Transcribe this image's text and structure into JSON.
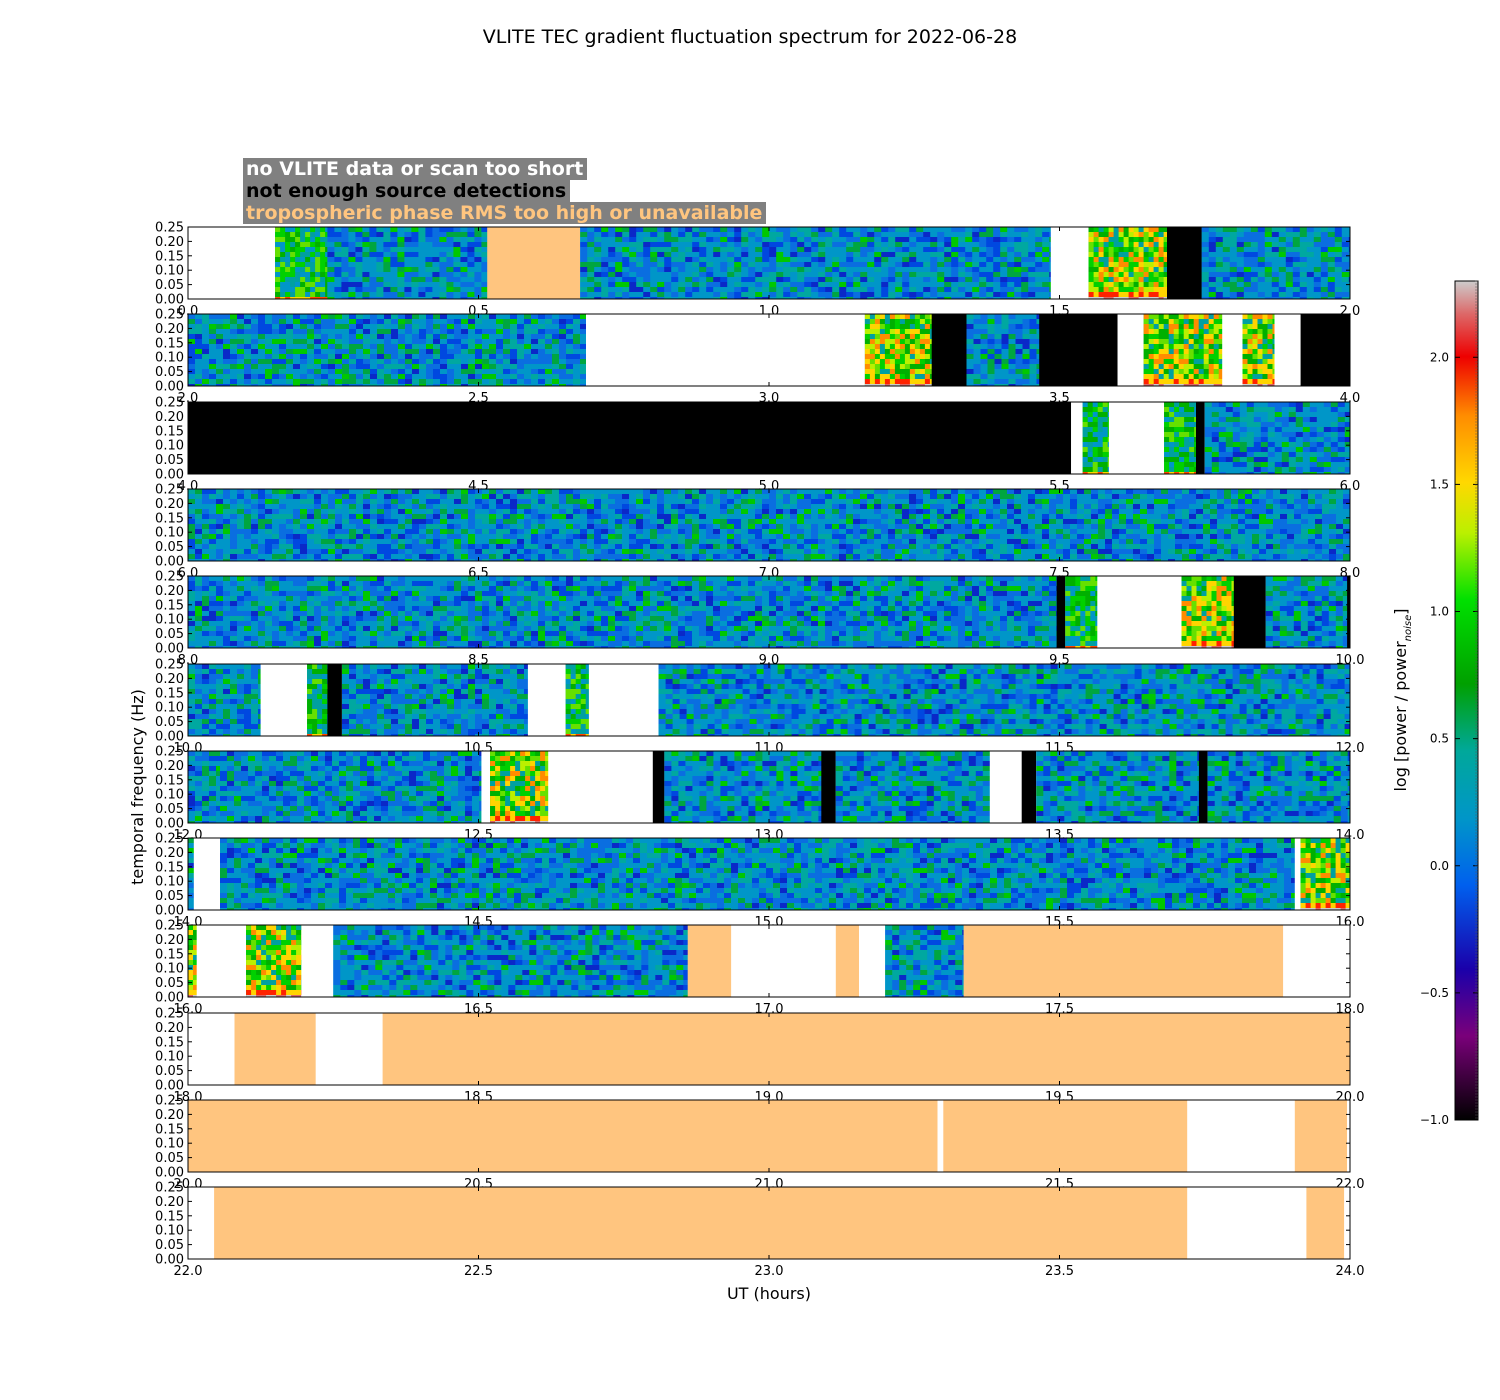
{
  "colors": {
    "tropo": "#ffc57f",
    "nodata": "#ffffff",
    "nodetect": "#000000",
    "legend_bg": "#808080"
  },
  "legend": [
    {
      "label": "no VLITE data or scan too short",
      "color": "#ffffff"
    },
    {
      "label": "not enough source detections",
      "color": "#000000"
    },
    {
      "label": "tropospheric phase RMS too high or unavailable",
      "color": "#ffc57f"
    }
  ],
  "chart_data": {
    "type": "heatmap",
    "title": "VLITE TEC gradient fluctuation spectrum for 2022-06-28",
    "xlabel": "UT (hours)",
    "ylabel": "temporal frequency (Hz)",
    "ylim": [
      0,
      0.25
    ],
    "yticks": [
      "0.00",
      "0.05",
      "0.10",
      "0.15",
      "0.20",
      "0.25"
    ],
    "colorbar": {
      "label": "log [power / power",
      "label_sub": "noise",
      "label_end": "]",
      "range": [
        -1.0,
        2.3
      ],
      "ticks": [
        "−1.0",
        "−0.5",
        "0.0",
        "0.5",
        "1.0",
        "1.5",
        "2.0"
      ]
    },
    "panels": [
      {
        "range": [
          0,
          2
        ],
        "xticks": [
          "0.0",
          "0.5",
          "1.0",
          "1.5",
          "2.0"
        ],
        "segments": [
          {
            "s": 0.0,
            "e": 0.15,
            "k": "nodata"
          },
          {
            "s": 0.15,
            "e": 0.24,
            "k": "green"
          },
          {
            "s": 0.24,
            "e": 0.515,
            "k": "noise"
          },
          {
            "s": 0.515,
            "e": 0.675,
            "k": "tropo"
          },
          {
            "s": 0.675,
            "e": 1.485,
            "k": "noise"
          },
          {
            "s": 1.485,
            "e": 1.55,
            "k": "nodata"
          },
          {
            "s": 1.55,
            "e": 1.685,
            "k": "hot"
          },
          {
            "s": 1.685,
            "e": 1.745,
            "k": "black"
          },
          {
            "s": 1.745,
            "e": 2.0,
            "k": "noise"
          }
        ]
      },
      {
        "range": [
          2,
          4
        ],
        "xticks": [
          "2.0",
          "2.5",
          "3.0",
          "3.5",
          "4.0"
        ],
        "segments": [
          {
            "s": 2.0,
            "e": 2.685,
            "k": "noise"
          },
          {
            "s": 2.685,
            "e": 3.165,
            "k": "nodata"
          },
          {
            "s": 3.165,
            "e": 3.28,
            "k": "hot"
          },
          {
            "s": 3.28,
            "e": 3.34,
            "k": "black"
          },
          {
            "s": 3.34,
            "e": 3.465,
            "k": "noise"
          },
          {
            "s": 3.465,
            "e": 3.6,
            "k": "black"
          },
          {
            "s": 3.6,
            "e": 3.645,
            "k": "nodata"
          },
          {
            "s": 3.645,
            "e": 3.78,
            "k": "hot"
          },
          {
            "s": 3.78,
            "e": 3.815,
            "k": "nodata"
          },
          {
            "s": 3.815,
            "e": 3.87,
            "k": "hot"
          },
          {
            "s": 3.87,
            "e": 3.915,
            "k": "nodata"
          },
          {
            "s": 3.915,
            "e": 4.0,
            "k": "black"
          }
        ]
      },
      {
        "range": [
          4,
          6
        ],
        "xticks": [
          "4.0",
          "4.5",
          "5.0",
          "5.5",
          "6.0"
        ],
        "segments": [
          {
            "s": 4.0,
            "e": 5.52,
            "k": "black"
          },
          {
            "s": 5.52,
            "e": 5.54,
            "k": "nodata"
          },
          {
            "s": 5.54,
            "e": 5.585,
            "k": "green"
          },
          {
            "s": 5.585,
            "e": 5.68,
            "k": "nodata"
          },
          {
            "s": 5.68,
            "e": 5.735,
            "k": "green"
          },
          {
            "s": 5.735,
            "e": 5.75,
            "k": "black"
          },
          {
            "s": 5.75,
            "e": 6.0,
            "k": "noise"
          }
        ]
      },
      {
        "range": [
          6,
          8
        ],
        "xticks": [
          "6.0",
          "6.5",
          "7.0",
          "7.5",
          "8.0"
        ],
        "segments": [
          {
            "s": 6.0,
            "e": 8.0,
            "k": "noise"
          }
        ]
      },
      {
        "range": [
          8,
          10
        ],
        "xticks": [
          "8.0",
          "8.5",
          "9.0",
          "9.5",
          "10.0"
        ],
        "segments": [
          {
            "s": 8.0,
            "e": 9.495,
            "k": "noise"
          },
          {
            "s": 9.495,
            "e": 9.51,
            "k": "black"
          },
          {
            "s": 9.51,
            "e": 9.565,
            "k": "green"
          },
          {
            "s": 9.565,
            "e": 9.71,
            "k": "nodata"
          },
          {
            "s": 9.71,
            "e": 9.8,
            "k": "hot"
          },
          {
            "s": 9.8,
            "e": 9.855,
            "k": "black"
          },
          {
            "s": 9.855,
            "e": 9.995,
            "k": "noise"
          },
          {
            "s": 9.995,
            "e": 10.0,
            "k": "black"
          }
        ]
      },
      {
        "range": [
          10,
          12
        ],
        "xticks": [
          "10.0",
          "10.5",
          "11.0",
          "11.5",
          "12.0"
        ],
        "segments": [
          {
            "s": 10.0,
            "e": 10.125,
            "k": "noise"
          },
          {
            "s": 10.125,
            "e": 10.205,
            "k": "nodata"
          },
          {
            "s": 10.205,
            "e": 10.24,
            "k": "green"
          },
          {
            "s": 10.24,
            "e": 10.265,
            "k": "black"
          },
          {
            "s": 10.265,
            "e": 10.585,
            "k": "noise"
          },
          {
            "s": 10.585,
            "e": 10.65,
            "k": "nodata"
          },
          {
            "s": 10.65,
            "e": 10.69,
            "k": "green"
          },
          {
            "s": 10.69,
            "e": 10.81,
            "k": "nodata"
          },
          {
            "s": 10.81,
            "e": 12.0,
            "k": "noise"
          }
        ]
      },
      {
        "range": [
          12,
          14
        ],
        "xticks": [
          "12.0",
          "12.5",
          "13.0",
          "13.5",
          "14.0"
        ],
        "segments": [
          {
            "s": 12.0,
            "e": 12.055,
            "k": "noise"
          },
          {
            "s": 12.055,
            "e": 12.505,
            "k": "noise"
          },
          {
            "s": 12.505,
            "e": 12.52,
            "k": "nodata"
          },
          {
            "s": 12.52,
            "e": 12.62,
            "k": "hot"
          },
          {
            "s": 12.62,
            "e": 12.8,
            "k": "nodata"
          },
          {
            "s": 12.8,
            "e": 12.82,
            "k": "black"
          },
          {
            "s": 12.82,
            "e": 13.09,
            "k": "noise"
          },
          {
            "s": 13.09,
            "e": 13.115,
            "k": "black"
          },
          {
            "s": 13.115,
            "e": 13.38,
            "k": "noise"
          },
          {
            "s": 13.38,
            "e": 13.435,
            "k": "nodata"
          },
          {
            "s": 13.435,
            "e": 13.46,
            "k": "black"
          },
          {
            "s": 13.46,
            "e": 13.74,
            "k": "noise"
          },
          {
            "s": 13.74,
            "e": 13.755,
            "k": "black"
          },
          {
            "s": 13.755,
            "e": 14.0,
            "k": "noise"
          }
        ]
      },
      {
        "range": [
          14,
          16
        ],
        "xticks": [
          "14.0",
          "14.5",
          "15.0",
          "15.5",
          "16.0"
        ],
        "segments": [
          {
            "s": 14.0,
            "e": 14.01,
            "k": "noise"
          },
          {
            "s": 14.01,
            "e": 14.055,
            "k": "nodata"
          },
          {
            "s": 14.055,
            "e": 15.905,
            "k": "noise"
          },
          {
            "s": 15.905,
            "e": 15.915,
            "k": "nodata"
          },
          {
            "s": 15.915,
            "e": 16.0,
            "k": "hot"
          }
        ]
      },
      {
        "range": [
          16,
          18
        ],
        "xticks": [
          "16.0",
          "16.5",
          "17.0",
          "17.5",
          "18.0"
        ],
        "segments": [
          {
            "s": 16.0,
            "e": 16.015,
            "k": "hot"
          },
          {
            "s": 16.015,
            "e": 16.1,
            "k": "nodata"
          },
          {
            "s": 16.1,
            "e": 16.195,
            "k": "hot"
          },
          {
            "s": 16.195,
            "e": 16.25,
            "k": "nodata"
          },
          {
            "s": 16.25,
            "e": 16.86,
            "k": "noise"
          },
          {
            "s": 16.86,
            "e": 16.935,
            "k": "tropo"
          },
          {
            "s": 16.935,
            "e": 17.115,
            "k": "nodata"
          },
          {
            "s": 17.115,
            "e": 17.155,
            "k": "tropo"
          },
          {
            "s": 17.155,
            "e": 17.2,
            "k": "nodata"
          },
          {
            "s": 17.2,
            "e": 17.335,
            "k": "noise"
          },
          {
            "s": 17.335,
            "e": 17.885,
            "k": "tropo"
          },
          {
            "s": 17.885,
            "e": 18.0,
            "k": "nodata"
          }
        ]
      },
      {
        "range": [
          18,
          20
        ],
        "xticks": [
          "18.0",
          "18.5",
          "19.0",
          "19.5",
          "20.0"
        ],
        "segments": [
          {
            "s": 18.0,
            "e": 18.08,
            "k": "nodata"
          },
          {
            "s": 18.08,
            "e": 18.22,
            "k": "tropo"
          },
          {
            "s": 18.22,
            "e": 18.335,
            "k": "nodata"
          },
          {
            "s": 18.335,
            "e": 20.0,
            "k": "tropo"
          }
        ]
      },
      {
        "range": [
          20,
          22
        ],
        "xticks": [
          "20.0",
          "20.5",
          "21.0",
          "21.5",
          "22.0"
        ],
        "segments": [
          {
            "s": 20.0,
            "e": 21.29,
            "k": "tropo"
          },
          {
            "s": 21.29,
            "e": 21.3,
            "k": "nodata"
          },
          {
            "s": 21.3,
            "e": 21.72,
            "k": "tropo"
          },
          {
            "s": 21.72,
            "e": 21.905,
            "k": "nodata"
          },
          {
            "s": 21.905,
            "e": 21.995,
            "k": "tropo"
          },
          {
            "s": 21.995,
            "e": 22.0,
            "k": "nodata"
          }
        ]
      },
      {
        "range": [
          22,
          24
        ],
        "xticks": [
          "22.0",
          "22.5",
          "23.0",
          "23.5",
          "24.0"
        ],
        "segments": [
          {
            "s": 22.0,
            "e": 22.045,
            "k": "nodata"
          },
          {
            "s": 22.045,
            "e": 23.72,
            "k": "tropo"
          },
          {
            "s": 23.72,
            "e": 23.925,
            "k": "nodata"
          },
          {
            "s": 23.925,
            "e": 23.99,
            "k": "tropo"
          },
          {
            "s": 23.99,
            "e": 24.0,
            "k": "nodata"
          }
        ]
      }
    ]
  }
}
